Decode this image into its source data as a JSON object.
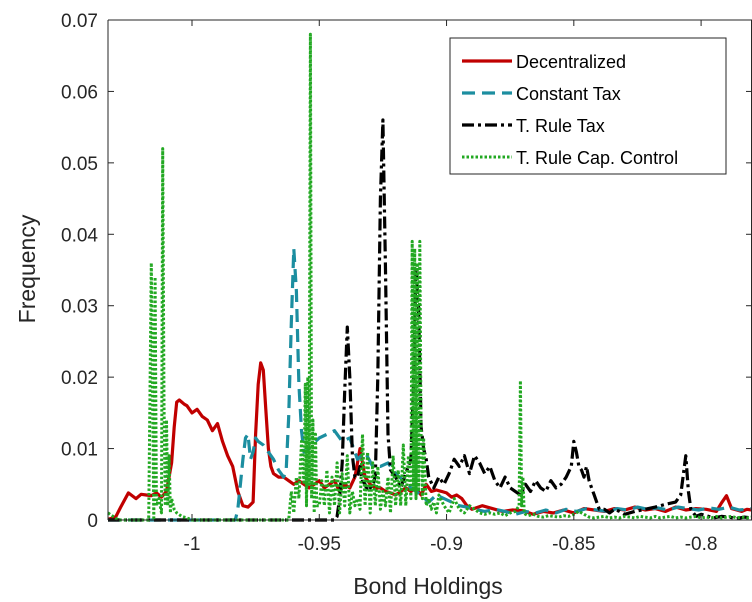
{
  "chart_data": {
    "type": "line",
    "xlabel": "Bond Holdings",
    "ylabel": "Frequency",
    "xlim": [
      -1.033,
      -0.78
    ],
    "ylim": [
      0,
      0.07
    ],
    "xticks": [
      -1,
      -0.95,
      -0.9,
      -0.85,
      -0.8
    ],
    "xtick_labels": [
      "-1",
      "-0.95",
      "-0.9",
      "-0.85",
      "-0.8"
    ],
    "yticks": [
      0,
      0.01,
      0.02,
      0.03,
      0.04,
      0.05,
      0.06,
      0.07
    ],
    "ytick_labels": [
      "0",
      "0.01",
      "0.02",
      "0.03",
      "0.04",
      "0.05",
      "0.06",
      "0.07"
    ],
    "grid": false,
    "legend_position": "top-right",
    "series": [
      {
        "name": "Decentralized",
        "color": "#c00000",
        "style": "solid",
        "x": [
          -1.033,
          -1.03,
          -1.028,
          -1.025,
          -1.022,
          -1.02,
          -1.018,
          -1.016,
          -1.014,
          -1.012,
          -1.01,
          -1.008,
          -1.007,
          -1.006,
          -1.005,
          -1.004,
          -1.003,
          -1.002,
          -1.0,
          -0.998,
          -0.996,
          -0.994,
          -0.992,
          -0.99,
          -0.988,
          -0.986,
          -0.984,
          -0.982,
          -0.98,
          -0.978,
          -0.976,
          -0.975,
          -0.974,
          -0.973,
          -0.972,
          -0.971,
          -0.97,
          -0.969,
          -0.968,
          -0.966,
          -0.964,
          -0.962,
          -0.96,
          -0.958,
          -0.956,
          -0.954,
          -0.952,
          -0.95,
          -0.948,
          -0.946,
          -0.944,
          -0.942,
          -0.94,
          -0.938,
          -0.936,
          -0.935,
          -0.934,
          -0.933,
          -0.932,
          -0.93,
          -0.928,
          -0.926,
          -0.924,
          -0.922,
          -0.92,
          -0.918,
          -0.916,
          -0.914,
          -0.912,
          -0.91,
          -0.908,
          -0.906,
          -0.904,
          -0.902,
          -0.9,
          -0.898,
          -0.896,
          -0.894,
          -0.892,
          -0.89,
          -0.886,
          -0.882,
          -0.878,
          -0.874,
          -0.87,
          -0.866,
          -0.862,
          -0.858,
          -0.854,
          -0.85,
          -0.846,
          -0.842,
          -0.838,
          -0.834,
          -0.83,
          -0.826,
          -0.822,
          -0.818,
          -0.814,
          -0.81,
          -0.806,
          -0.802,
          -0.798,
          -0.794,
          -0.792,
          -0.79,
          -0.788,
          -0.786,
          -0.784,
          -0.782,
          -0.78
        ],
        "y": [
          0.0001,
          0.0004,
          0.0018,
          0.0038,
          0.003,
          0.0036,
          0.0035,
          0.0034,
          0.0038,
          0.0032,
          0.004,
          0.008,
          0.013,
          0.0165,
          0.0168,
          0.0165,
          0.0162,
          0.016,
          0.015,
          0.0155,
          0.0145,
          0.014,
          0.0125,
          0.0135,
          0.011,
          0.009,
          0.0075,
          0.004,
          0.002,
          0.0018,
          0.0025,
          0.012,
          0.019,
          0.022,
          0.021,
          0.0155,
          0.01,
          0.0075,
          0.0065,
          0.006,
          0.006,
          0.0055,
          0.005,
          0.0055,
          0.005,
          0.0045,
          0.005,
          0.0055,
          0.0045,
          0.005,
          0.0055,
          0.004,
          0.005,
          0.0045,
          0.006,
          0.008,
          0.01,
          0.008,
          0.006,
          0.005,
          0.0045,
          0.0045,
          0.004,
          0.0038,
          0.0035,
          0.004,
          0.0045,
          0.004,
          0.0045,
          0.0035,
          0.005,
          0.004,
          0.0042,
          0.004,
          0.0038,
          0.0032,
          0.0035,
          0.003,
          0.002,
          0.0015,
          0.002,
          0.0016,
          0.0012,
          0.0014,
          0.0013,
          0.0008,
          0.0012,
          0.001,
          0.0014,
          0.001,
          0.0016,
          0.0014,
          0.0012,
          0.0016,
          0.0014,
          0.0018,
          0.0014,
          0.0016,
          0.0012,
          0.0018,
          0.0014,
          0.0016,
          0.0015,
          0.0012,
          0.0024,
          0.0034,
          0.0016,
          0.0014,
          0.0012,
          0.0015,
          0.0014
        ]
      },
      {
        "name": "Constant Tax",
        "color": "#1c8ea0",
        "style": "dashed",
        "x": [
          -1.033,
          -0.983,
          -0.982,
          -0.981,
          -0.98,
          -0.979,
          -0.978,
          -0.977,
          -0.976,
          -0.975,
          -0.974,
          -0.972,
          -0.97,
          -0.968,
          -0.966,
          -0.964,
          -0.963,
          -0.962,
          -0.961,
          -0.96,
          -0.959,
          -0.958,
          -0.957,
          -0.956,
          -0.955,
          -0.953,
          -0.95,
          -0.947,
          -0.944,
          -0.941,
          -0.938,
          -0.935,
          -0.932,
          -0.929,
          -0.926,
          -0.923,
          -0.92,
          -0.917,
          -0.914,
          -0.912,
          -0.91,
          -0.907,
          -0.904,
          -0.901,
          -0.898,
          -0.895,
          -0.892,
          -0.889,
          -0.885,
          -0.881,
          -0.877,
          -0.873,
          -0.869,
          -0.865,
          -0.861,
          -0.857,
          -0.853,
          -0.849,
          -0.845,
          -0.841,
          -0.837,
          -0.833,
          -0.829,
          -0.825,
          -0.821,
          -0.817,
          -0.813,
          -0.809,
          -0.805,
          -0.801,
          -0.797,
          -0.793,
          -0.789,
          -0.785,
          -0.78
        ],
        "y": [
          0,
          0,
          0.0015,
          0.005,
          0.0085,
          0.0115,
          0.012,
          0.0085,
          0.0095,
          0.0115,
          0.011,
          0.0105,
          0.0095,
          0.0085,
          0.007,
          0.006,
          0.007,
          0.0145,
          0.0275,
          0.038,
          0.032,
          0.019,
          0.0125,
          0.0095,
          0.0095,
          0.0105,
          0.0115,
          0.012,
          0.0125,
          0.011,
          0.0115,
          0.0085,
          0.0095,
          0.0075,
          0.0075,
          0.008,
          0.0065,
          0.0055,
          0.0045,
          0.004,
          0.0035,
          0.0025,
          0.0035,
          0.003,
          0.0025,
          0.002,
          0.0018,
          0.0015,
          0.0012,
          0.0015,
          0.0012,
          0.0008,
          0.0012,
          0.001,
          0.0014,
          0.001,
          0.0015,
          0.0012,
          0.0016,
          0.0014,
          0.0012,
          0.0016,
          0.0014,
          0.0018,
          0.0015,
          0.0017,
          0.0014,
          0.0018,
          0.0016,
          0.0014,
          0.0017,
          0.0015,
          0.0018,
          0.0014,
          0.0016
        ]
      },
      {
        "name": "T. Rule Tax",
        "color": "#000000",
        "style": "dashdot",
        "x": [
          -1.033,
          -0.944,
          -0.943,
          -0.942,
          -0.941,
          -0.94,
          -0.939,
          -0.938,
          -0.937,
          -0.936,
          -0.935,
          -0.934,
          -0.933,
          -0.932,
          -0.931,
          -0.93,
          -0.929,
          -0.928,
          -0.927,
          -0.926,
          -0.925,
          -0.924,
          -0.923,
          -0.922,
          -0.921,
          -0.92,
          -0.918,
          -0.916,
          -0.914,
          -0.913,
          -0.912,
          -0.911,
          -0.91,
          -0.909,
          -0.908,
          -0.907,
          -0.905,
          -0.903,
          -0.901,
          -0.899,
          -0.897,
          -0.895,
          -0.893,
          -0.891,
          -0.889,
          -0.887,
          -0.885,
          -0.883,
          -0.881,
          -0.879,
          -0.877,
          -0.875,
          -0.873,
          -0.871,
          -0.869,
          -0.867,
          -0.865,
          -0.863,
          -0.861,
          -0.859,
          -0.857,
          -0.855,
          -0.853,
          -0.851,
          -0.85,
          -0.849,
          -0.848,
          -0.847,
          -0.846,
          -0.845,
          -0.844,
          -0.843,
          -0.842,
          -0.841,
          -0.84,
          -0.838,
          -0.836,
          -0.834,
          -0.832,
          -0.83,
          -0.826,
          -0.822,
          -0.818,
          -0.814,
          -0.81,
          -0.808,
          -0.806,
          -0.805,
          -0.804,
          -0.803,
          -0.802,
          -0.8,
          -0.798,
          -0.795,
          -0.792,
          -0.789,
          -0.786,
          -0.783,
          -0.78
        ],
        "y": [
          0,
          0,
          0.0005,
          0.003,
          0.008,
          0.018,
          0.027,
          0.02,
          0.009,
          0.006,
          0.006,
          0.0075,
          0.0055,
          0.005,
          0.004,
          0.0045,
          0.005,
          0.006,
          0.02,
          0.045,
          0.056,
          0.035,
          0.012,
          0.007,
          0.0065,
          0.006,
          0.0045,
          0.0065,
          0.0085,
          0.019,
          0.035,
          0.03,
          0.013,
          0.01,
          0.0085,
          0.006,
          0.0045,
          0.006,
          0.005,
          0.0065,
          0.0085,
          0.0075,
          0.009,
          0.0065,
          0.009,
          0.008,
          0.0065,
          0.0075,
          0.0055,
          0.0045,
          0.006,
          0.0045,
          0.004,
          0.0035,
          0.005,
          0.004,
          0.0055,
          0.0045,
          0.004,
          0.0055,
          0.0045,
          0.005,
          0.006,
          0.0075,
          0.011,
          0.0095,
          0.0075,
          0.007,
          0.006,
          0.0075,
          0.0055,
          0.0045,
          0.0035,
          0.0025,
          0.0015,
          0.0015,
          0.001,
          0.0015,
          0.0012,
          0.0008,
          0.0012,
          0.0015,
          0.0018,
          0.0022,
          0.0025,
          0.0035,
          0.009,
          0.004,
          0.0015,
          0.001,
          0.0005,
          0.0008,
          0.0006,
          0.0003,
          0.0005,
          0.0004,
          0.0002,
          0.0004,
          0.0003
        ]
      },
      {
        "name": "T. Rule Cap. Control",
        "color": "#22a822",
        "style": "dotted",
        "x": [
          -1.033,
          -1.031,
          -1.029,
          -1.027,
          -1.025,
          -1.023,
          -1.021,
          -1.019,
          -1.017,
          -1.016,
          -1.015,
          -1.0145,
          -1.014,
          -1.013,
          -1.012,
          -1.0115,
          -1.011,
          -1.0105,
          -1.01,
          -1.0095,
          -1.009,
          -1.0085,
          -1.008,
          -1.007,
          -1.006,
          -1.004,
          -1.002,
          -1.0,
          -0.998,
          -0.99,
          -0.98,
          -0.97,
          -0.965,
          -0.962,
          -0.961,
          -0.96,
          -0.959,
          -0.958,
          -0.957,
          -0.956,
          -0.9555,
          -0.955,
          -0.9545,
          -0.954,
          -0.9535,
          -0.953,
          -0.9525,
          -0.952,
          -0.9515,
          -0.951,
          -0.95,
          -0.949,
          -0.948,
          -0.947,
          -0.946,
          -0.945,
          -0.944,
          -0.943,
          -0.942,
          -0.941,
          -0.94,
          -0.939,
          -0.938,
          -0.937,
          -0.936,
          -0.935,
          -0.934,
          -0.933,
          -0.932,
          -0.931,
          -0.93,
          -0.929,
          -0.928,
          -0.927,
          -0.926,
          -0.925,
          -0.924,
          -0.923,
          -0.922,
          -0.921,
          -0.92,
          -0.919,
          -0.918,
          -0.917,
          -0.916,
          -0.915,
          -0.914,
          -0.9135,
          -0.913,
          -0.9125,
          -0.912,
          -0.9115,
          -0.911,
          -0.9105,
          -0.91,
          -0.9095,
          -0.909,
          -0.908,
          -0.907,
          -0.906,
          -0.905,
          -0.904,
          -0.903,
          -0.901,
          -0.899,
          -0.897,
          -0.895,
          -0.893,
          -0.891,
          -0.889,
          -0.887,
          -0.885,
          -0.883,
          -0.881,
          -0.879,
          -0.877,
          -0.875,
          -0.873,
          -0.8715,
          -0.871,
          -0.8705,
          -0.87,
          -0.8695,
          -0.869,
          -0.868,
          -0.866,
          -0.864,
          -0.862,
          -0.86,
          -0.858,
          -0.856,
          -0.854,
          -0.852,
          -0.85,
          -0.848,
          -0.846,
          -0.844,
          -0.842,
          -0.84,
          -0.838,
          -0.836,
          -0.834,
          -0.832,
          -0.83,
          -0.828,
          -0.826,
          -0.824,
          -0.822,
          -0.82,
          -0.818,
          -0.816,
          -0.814,
          -0.812,
          -0.81,
          -0.808,
          -0.806,
          -0.804,
          -0.802,
          -0.8,
          -0.798,
          -0.796,
          -0.794,
          -0.792,
          -0.79,
          -0.788,
          -0.786,
          -0.784,
          -0.782,
          -0.78
        ],
        "y": [
          0.001,
          0.0005,
          0,
          0,
          0,
          0,
          0,
          0,
          0,
          0.036,
          0,
          0.034,
          0.002,
          0.003,
          0.001,
          0.052,
          0.016,
          0.002,
          0.014,
          0.002,
          0.009,
          0.001,
          0.003,
          0.0015,
          0.001,
          0.0005,
          0.0003,
          0,
          0,
          0,
          0,
          0,
          0,
          0,
          0.004,
          0.001,
          0.006,
          0.003,
          0.011,
          0.005,
          0.019,
          0.002,
          0.02,
          0.005,
          0.068,
          0.003,
          0.014,
          0.001,
          0.012,
          0.002,
          0.002,
          0.0055,
          0.002,
          0.007,
          0.001,
          0.006,
          0.002,
          0.008,
          0.001,
          0.0065,
          0.002,
          0.009,
          0.001,
          0.004,
          0.002,
          0.003,
          0.0015,
          0.012,
          0.002,
          0.0095,
          0.001,
          0.008,
          0.002,
          0.0075,
          0.0015,
          0.004,
          0.002,
          0.006,
          0.001,
          0.009,
          0.002,
          0.007,
          0.002,
          0.0105,
          0.002,
          0.009,
          0.003,
          0.039,
          0.004,
          0.038,
          0.003,
          0.036,
          0.004,
          0.039,
          0.012,
          0.003,
          0.0115,
          0.002,
          0.003,
          0.0015,
          0.0025,
          0.001,
          0.0035,
          0.002,
          0.001,
          0.003,
          0.0015,
          0.001,
          0.002,
          0.0015,
          0.001,
          0.0008,
          0.001,
          0.0008,
          0.001,
          0.0006,
          0.001,
          0.0012,
          0.002,
          0.0195,
          0.002,
          0.006,
          0.001,
          0.0008,
          0.0006,
          0.0008,
          0.0005,
          0.0004,
          0.0006,
          0.0005,
          0.0004,
          0.0006,
          0.0005,
          0.0008,
          0.0012,
          0.0008,
          0.0004,
          0.0003,
          0.0004,
          0.0005,
          0.0003,
          0.0004,
          0.0003,
          0.0005,
          0.0004,
          0.0003,
          0.0005,
          0.0004,
          0.0003,
          0.0005,
          0.0003,
          0.0004,
          0.0005,
          0.0003,
          0.0004,
          0.0003,
          0.0004,
          0.0005,
          0.0003,
          0.0004,
          0.0003,
          0.0005,
          0.0003,
          0.0004,
          0.0005,
          0.0003,
          0.0004,
          0.0003,
          0.0004
        ]
      }
    ]
  }
}
